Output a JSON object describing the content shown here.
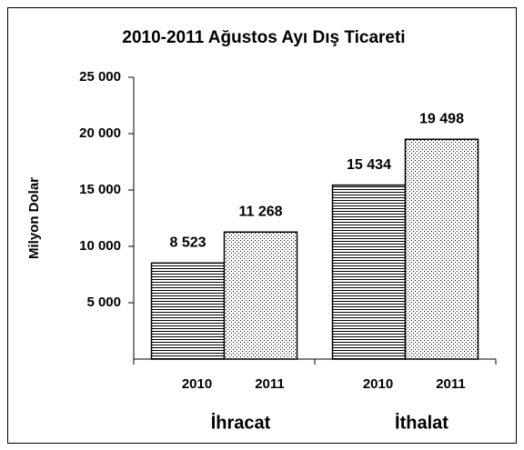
{
  "chart_data": {
    "type": "bar",
    "title": "2010-2011 Ağustos  Ayı Dış Ticareti",
    "ylabel": "Milyon Dolar",
    "categories": [
      "İhracat",
      "İthalat"
    ],
    "series": [
      {
        "name": "2010",
        "color": "#000000",
        "hatch": "horizontal",
        "values": [
          8523,
          15434
        ],
        "value_labels": [
          "8 523",
          "15 434"
        ]
      },
      {
        "name": "2011",
        "color": "#000000",
        "hatch": "dots",
        "values": [
          11268,
          19498
        ],
        "value_labels": [
          "11 268",
          "19 498"
        ]
      }
    ],
    "ylim": [
      0,
      25000
    ],
    "yticks": [
      {
        "value": 5000,
        "label": "5 000"
      },
      {
        "value": 10000,
        "label": "10 000"
      },
      {
        "value": 15000,
        "label": "15 000"
      },
      {
        "value": 20000,
        "label": "20 000"
      },
      {
        "value": 25000,
        "label": "25 000"
      }
    ]
  }
}
